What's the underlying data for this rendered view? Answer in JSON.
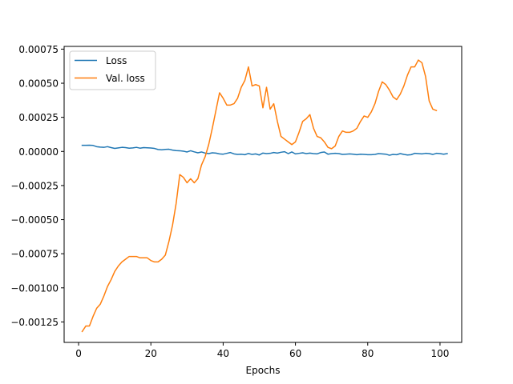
{
  "chart_data": {
    "type": "line",
    "title": "",
    "xlabel": "Epochs",
    "ylabel": "",
    "xlim": [
      -4,
      106
    ],
    "ylim": [
      -0.0014,
      0.00077
    ],
    "xticks": [
      0,
      20,
      40,
      60,
      80,
      100
    ],
    "xtick_labels": [
      "0",
      "20",
      "40",
      "60",
      "80",
      "100"
    ],
    "yticks": [
      -0.00125,
      -0.001,
      -0.00075,
      -0.0005,
      -0.00025,
      0,
      0.00025,
      0.0005,
      0.00075
    ],
    "ytick_labels": [
      "−0.00125",
      "−0.00100",
      "−0.00075",
      "−0.00050",
      "−0.00025",
      "0.00000",
      "0.00025",
      "0.00050",
      "0.00075"
    ],
    "grid": false,
    "legend_position": "top-left",
    "series": [
      {
        "name": "Loss",
        "color": "#1f77b4",
        "points": [
          [
            1,
            4.5e-05
          ],
          [
            2,
            4.5e-05
          ],
          [
            3,
            4.6e-05
          ],
          [
            4,
            4.4e-05
          ],
          [
            5,
            3.5e-05
          ],
          [
            6,
            3.2e-05
          ],
          [
            7,
            3e-05
          ],
          [
            8,
            3.5e-05
          ],
          [
            9,
            2.8e-05
          ],
          [
            10,
            2.2e-05
          ],
          [
            11,
            2.6e-05
          ],
          [
            12,
            3e-05
          ],
          [
            13,
            2.8e-05
          ],
          [
            14,
            2.4e-05
          ],
          [
            15,
            2.6e-05
          ],
          [
            16,
            3e-05
          ],
          [
            17,
            2.4e-05
          ],
          [
            18,
            2.8e-05
          ],
          [
            19,
            2.7e-05
          ],
          [
            20,
            2.5e-05
          ],
          [
            21,
            2.2e-05
          ],
          [
            22,
            1.4e-05
          ],
          [
            23,
            1.2e-05
          ],
          [
            24,
            1.5e-05
          ],
          [
            25,
            1.6e-05
          ],
          [
            26,
            1e-05
          ],
          [
            27,
            6e-06
          ],
          [
            28,
            5e-06
          ],
          [
            29,
            2e-06
          ],
          [
            30,
            -4e-06
          ],
          [
            31,
            5e-06
          ],
          [
            32,
            -3e-06
          ],
          [
            33,
            -1e-05
          ],
          [
            34,
            -4e-06
          ],
          [
            35,
            -1.2e-05
          ],
          [
            36,
            -1.6e-05
          ],
          [
            37,
            -1e-05
          ],
          [
            38,
            -1.2e-05
          ],
          [
            39,
            -1.8e-05
          ],
          [
            40,
            -2e-05
          ],
          [
            41,
            -1.4e-05
          ],
          [
            42,
            -8e-06
          ],
          [
            43,
            -1.8e-05
          ],
          [
            44,
            -2.2e-05
          ],
          [
            45,
            -2e-05
          ],
          [
            46,
            -2.4e-05
          ],
          [
            47,
            -1.5e-05
          ],
          [
            48,
            -2.2e-05
          ],
          [
            49,
            -1.8e-05
          ],
          [
            50,
            -2.6e-05
          ],
          [
            51,
            -1.2e-05
          ],
          [
            52,
            -1.6e-05
          ],
          [
            53,
            -1.4e-05
          ],
          [
            54,
            -8e-06
          ],
          [
            55,
            -1.2e-05
          ],
          [
            56,
            -6e-06
          ],
          [
            57,
            -2e-06
          ],
          [
            58,
            -1.6e-05
          ],
          [
            59,
            -4e-06
          ],
          [
            60,
            -1.8e-05
          ],
          [
            61,
            -1.4e-05
          ],
          [
            62,
            -1e-05
          ],
          [
            63,
            -1.6e-05
          ],
          [
            64,
            -1.2e-05
          ],
          [
            65,
            -1.6e-05
          ],
          [
            66,
            -1.8e-05
          ],
          [
            67,
            -8e-06
          ],
          [
            68,
            -4e-06
          ],
          [
            69,
            -2e-05
          ],
          [
            70,
            -1.6e-05
          ],
          [
            71,
            -1.4e-05
          ],
          [
            72,
            -1.6e-05
          ],
          [
            73,
            -2.2e-05
          ],
          [
            74,
            -2e-05
          ],
          [
            75,
            -1.8e-05
          ],
          [
            76,
            -2e-05
          ],
          [
            77,
            -2.4e-05
          ],
          [
            78,
            -2e-05
          ],
          [
            79,
            -2.2e-05
          ],
          [
            80,
            -2.4e-05
          ],
          [
            81,
            -2.4e-05
          ],
          [
            82,
            -2.2e-05
          ],
          [
            83,
            -1.6e-05
          ],
          [
            84,
            -1.8e-05
          ],
          [
            85,
            -2e-05
          ],
          [
            86,
            -2.8e-05
          ],
          [
            87,
            -2.2e-05
          ],
          [
            88,
            -2.4e-05
          ],
          [
            89,
            -1.6e-05
          ],
          [
            90,
            -2.2e-05
          ],
          [
            91,
            -2.6e-05
          ],
          [
            92,
            -2.4e-05
          ],
          [
            93,
            -1.4e-05
          ],
          [
            94,
            -1.6e-05
          ],
          [
            95,
            -1.8e-05
          ],
          [
            96,
            -1.4e-05
          ],
          [
            97,
            -1.6e-05
          ],
          [
            98,
            -2.2e-05
          ],
          [
            99,
            -1.4e-05
          ],
          [
            100,
            -1.6e-05
          ],
          [
            101,
            -2e-05
          ],
          [
            102,
            -1.6e-05
          ]
        ]
      },
      {
        "name": "Val. loss",
        "color": "#ff7f0e",
        "points": [
          [
            1,
            -0.00132
          ],
          [
            2,
            -0.00128
          ],
          [
            3,
            -0.00128
          ],
          [
            4,
            -0.00121
          ],
          [
            5,
            -0.00115
          ],
          [
            6,
            -0.00112
          ],
          [
            7,
            -0.00106
          ],
          [
            8,
            -0.00099
          ],
          [
            9,
            -0.00094
          ],
          [
            10,
            -0.00088
          ],
          [
            11,
            -0.00084
          ],
          [
            12,
            -0.00081
          ],
          [
            13,
            -0.00079
          ],
          [
            14,
            -0.00077
          ],
          [
            15,
            -0.00077
          ],
          [
            16,
            -0.00077
          ],
          [
            17,
            -0.00078
          ],
          [
            18,
            -0.00078
          ],
          [
            19,
            -0.00078
          ],
          [
            20,
            -0.0008
          ],
          [
            21,
            -0.00081
          ],
          [
            22,
            -0.00081
          ],
          [
            23,
            -0.00079
          ],
          [
            24,
            -0.00076
          ],
          [
            25,
            -0.00066
          ],
          [
            26,
            -0.00054
          ],
          [
            27,
            -0.00038
          ],
          [
            28,
            -0.00017
          ],
          [
            29,
            -0.00019
          ],
          [
            30,
            -0.00023
          ],
          [
            31,
            -0.0002
          ],
          [
            32,
            -0.00023
          ],
          [
            33,
            -0.0002
          ],
          [
            34,
            -0.0001
          ],
          [
            35,
            -4e-05
          ],
          [
            36,
            5e-05
          ],
          [
            37,
            0.00017
          ],
          [
            38,
            0.0003
          ],
          [
            39,
            0.00043
          ],
          [
            40,
            0.00039
          ],
          [
            41,
            0.00034
          ],
          [
            42,
            0.00034
          ],
          [
            43,
            0.00035
          ],
          [
            44,
            0.00039
          ],
          [
            45,
            0.00047
          ],
          [
            46,
            0.00052
          ],
          [
            47,
            0.00062
          ],
          [
            48,
            0.00048
          ],
          [
            49,
            0.00049
          ],
          [
            50,
            0.00048
          ],
          [
            51,
            0.00032
          ],
          [
            52,
            0.00047
          ],
          [
            53,
            0.00031
          ],
          [
            54,
            0.00035
          ],
          [
            55,
            0.00022
          ],
          [
            56,
            0.00011
          ],
          [
            57,
            9e-05
          ],
          [
            58,
            7e-05
          ],
          [
            59,
            5e-05
          ],
          [
            60,
            7e-05
          ],
          [
            61,
            0.00014
          ],
          [
            62,
            0.00022
          ],
          [
            63,
            0.00024
          ],
          [
            64,
            0.00027
          ],
          [
            65,
            0.00017
          ],
          [
            66,
            0.00011
          ],
          [
            67,
            0.0001
          ],
          [
            68,
            7e-05
          ],
          [
            69,
            3e-05
          ],
          [
            70,
            2e-05
          ],
          [
            71,
            4e-05
          ],
          [
            72,
            0.00011
          ],
          [
            73,
            0.00015
          ],
          [
            74,
            0.00014
          ],
          [
            75,
            0.00014
          ],
          [
            76,
            0.00015
          ],
          [
            77,
            0.00017
          ],
          [
            78,
            0.00022
          ],
          [
            79,
            0.00026
          ],
          [
            80,
            0.00025
          ],
          [
            81,
            0.00029
          ],
          [
            82,
            0.00035
          ],
          [
            83,
            0.00044
          ],
          [
            84,
            0.00051
          ],
          [
            85,
            0.00049
          ],
          [
            86,
            0.00045
          ],
          [
            87,
            0.0004
          ],
          [
            88,
            0.00038
          ],
          [
            89,
            0.00042
          ],
          [
            90,
            0.00048
          ],
          [
            91,
            0.00056
          ],
          [
            92,
            0.00062
          ],
          [
            93,
            0.00062
          ],
          [
            94,
            0.00067
          ],
          [
            95,
            0.00065
          ],
          [
            96,
            0.00055
          ],
          [
            97,
            0.00037
          ],
          [
            98,
            0.00031
          ],
          [
            99,
            0.0003
          ]
        ]
      }
    ]
  }
}
